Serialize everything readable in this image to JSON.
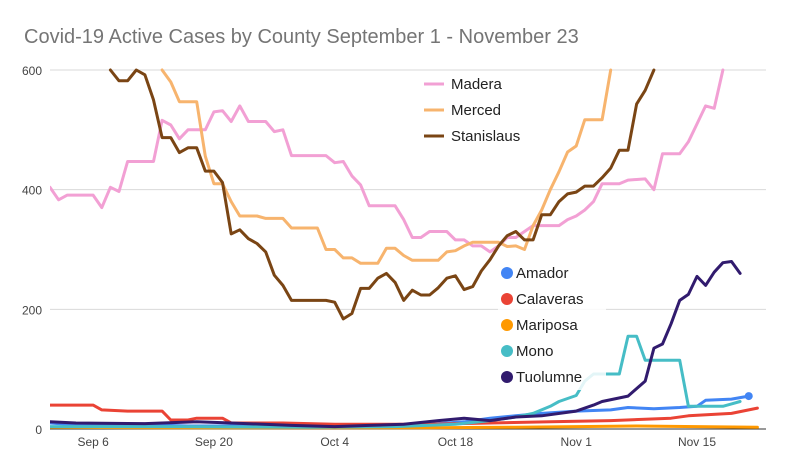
{
  "chart_data": {
    "type": "line",
    "title": "Covid-19 Active Cases by County September 1 - November 23",
    "xlabel": "",
    "ylabel": "",
    "ylim": [
      0,
      600
    ],
    "xlim": [
      "2020-09-01",
      "2020-11-23"
    ],
    "grid": true,
    "y_ticks": [
      0,
      200,
      400,
      600
    ],
    "x_ticks": [
      {
        "date": "2020-09-06",
        "label": "Sep 6"
      },
      {
        "date": "2020-09-20",
        "label": "Sep 20"
      },
      {
        "date": "2020-10-04",
        "label": "Oct 4"
      },
      {
        "date": "2020-10-18",
        "label": "Oct 18"
      },
      {
        "date": "2020-11-01",
        "label": "Nov 1"
      },
      {
        "date": "2020-11-15",
        "label": "Nov 15"
      }
    ],
    "legend_groups": [
      {
        "placement": "top-center",
        "style": "line",
        "series": [
          "Madera",
          "Merced",
          "Stanislaus"
        ]
      },
      {
        "placement": "center-right",
        "style": "dot",
        "series": [
          "Amador",
          "Calaveras",
          "Mariposa",
          "Mono",
          "Tuolumne"
        ]
      }
    ],
    "series": [
      {
        "name": "Madera",
        "color": "#f2a0d4",
        "points": [
          [
            "2020-09-01",
            404
          ],
          [
            "2020-09-02",
            383
          ],
          [
            "2020-09-03",
            391
          ],
          [
            "2020-09-05",
            391
          ],
          [
            "2020-09-06",
            391
          ],
          [
            "2020-09-07",
            370
          ],
          [
            "2020-09-08",
            404
          ],
          [
            "2020-09-09",
            397
          ],
          [
            "2020-09-10",
            447
          ],
          [
            "2020-09-13",
            447
          ],
          [
            "2020-09-14",
            516
          ],
          [
            "2020-09-15",
            508
          ],
          [
            "2020-09-16",
            485
          ],
          [
            "2020-09-17",
            500
          ],
          [
            "2020-09-19",
            500
          ],
          [
            "2020-09-20",
            530
          ],
          [
            "2020-09-21",
            532
          ],
          [
            "2020-09-22",
            514
          ],
          [
            "2020-09-23",
            540
          ],
          [
            "2020-09-24",
            514
          ],
          [
            "2020-09-26",
            514
          ],
          [
            "2020-09-27",
            497
          ],
          [
            "2020-09-28",
            500
          ],
          [
            "2020-09-29",
            457
          ],
          [
            "2020-10-03",
            457
          ],
          [
            "2020-10-04",
            445
          ],
          [
            "2020-10-05",
            447
          ],
          [
            "2020-10-06",
            423
          ],
          [
            "2020-10-07",
            408
          ],
          [
            "2020-10-08",
            373
          ],
          [
            "2020-10-11",
            373
          ],
          [
            "2020-10-12",
            350
          ],
          [
            "2020-10-13",
            320
          ],
          [
            "2020-10-14",
            320
          ],
          [
            "2020-10-15",
            330
          ],
          [
            "2020-10-17",
            330
          ],
          [
            "2020-10-18",
            316
          ],
          [
            "2020-10-19",
            316
          ],
          [
            "2020-10-20",
            306
          ],
          [
            "2020-10-21",
            306
          ],
          [
            "2020-10-22",
            296
          ],
          [
            "2020-10-23",
            306
          ],
          [
            "2020-10-24",
            320
          ],
          [
            "2020-10-25",
            320
          ],
          [
            "2020-10-26",
            330
          ],
          [
            "2020-10-27",
            340
          ],
          [
            "2020-10-30",
            340
          ],
          [
            "2020-10-31",
            350
          ],
          [
            "2020-11-01",
            356
          ],
          [
            "2020-11-02",
            366
          ],
          [
            "2020-11-03",
            380
          ],
          [
            "2020-11-04",
            410
          ],
          [
            "2020-11-06",
            410
          ],
          [
            "2020-11-07",
            416
          ],
          [
            "2020-11-09",
            418
          ],
          [
            "2020-11-10",
            400
          ],
          [
            "2020-11-11",
            460
          ],
          [
            "2020-11-13",
            460
          ],
          [
            "2020-11-14",
            480
          ],
          [
            "2020-11-15",
            510
          ],
          [
            "2020-11-16",
            540
          ],
          [
            "2020-11-17",
            536
          ],
          [
            "2020-11-18",
            600
          ]
        ]
      },
      {
        "name": "Merced",
        "color": "#f7b46e",
        "points": [
          [
            "2020-09-14",
            600
          ],
          [
            "2020-09-15",
            580
          ],
          [
            "2020-09-16",
            547
          ],
          [
            "2020-09-17",
            547
          ],
          [
            "2020-09-18",
            547
          ],
          [
            "2020-09-19",
            456
          ],
          [
            "2020-09-20",
            410
          ],
          [
            "2020-09-21",
            410
          ],
          [
            "2020-09-22",
            380
          ],
          [
            "2020-09-23",
            356
          ],
          [
            "2020-09-25",
            356
          ],
          [
            "2020-09-26",
            352
          ],
          [
            "2020-09-28",
            352
          ],
          [
            "2020-09-29",
            336
          ],
          [
            "2020-10-02",
            336
          ],
          [
            "2020-10-03",
            300
          ],
          [
            "2020-10-04",
            300
          ],
          [
            "2020-10-05",
            286
          ],
          [
            "2020-10-06",
            286
          ],
          [
            "2020-10-07",
            277
          ],
          [
            "2020-10-09",
            277
          ],
          [
            "2020-10-10",
            302
          ],
          [
            "2020-10-11",
            302
          ],
          [
            "2020-10-12",
            290
          ],
          [
            "2020-10-13",
            282
          ],
          [
            "2020-10-16",
            282
          ],
          [
            "2020-10-17",
            296
          ],
          [
            "2020-10-18",
            298
          ],
          [
            "2020-10-19",
            306
          ],
          [
            "2020-10-20",
            312
          ],
          [
            "2020-10-23",
            312
          ],
          [
            "2020-10-24",
            305
          ],
          [
            "2020-10-25",
            306
          ],
          [
            "2020-10-26",
            300
          ],
          [
            "2020-10-27",
            340
          ],
          [
            "2020-10-28",
            366
          ],
          [
            "2020-10-29",
            400
          ],
          [
            "2020-10-30",
            430
          ],
          [
            "2020-10-31",
            463
          ],
          [
            "2020-11-01",
            473
          ],
          [
            "2020-11-02",
            517
          ],
          [
            "2020-11-04",
            517
          ],
          [
            "2020-11-05",
            600
          ]
        ]
      },
      {
        "name": "Stanislaus",
        "color": "#7a4514",
        "points": [
          [
            "2020-09-08",
            600
          ],
          [
            "2020-09-09",
            582
          ],
          [
            "2020-09-10",
            582
          ],
          [
            "2020-09-11",
            600
          ],
          [
            "2020-09-12",
            592
          ],
          [
            "2020-09-13",
            550
          ],
          [
            "2020-09-14",
            487
          ],
          [
            "2020-09-15",
            487
          ],
          [
            "2020-09-16",
            462
          ],
          [
            "2020-09-17",
            470
          ],
          [
            "2020-09-18",
            470
          ],
          [
            "2020-09-19",
            431
          ],
          [
            "2020-09-20",
            431
          ],
          [
            "2020-09-21",
            412
          ],
          [
            "2020-09-22",
            326
          ],
          [
            "2020-09-23",
            333
          ],
          [
            "2020-09-24",
            318
          ],
          [
            "2020-09-25",
            310
          ],
          [
            "2020-09-26",
            296
          ],
          [
            "2020-09-27",
            257
          ],
          [
            "2020-09-28",
            240
          ],
          [
            "2020-09-29",
            215
          ],
          [
            "2020-10-03",
            215
          ],
          [
            "2020-10-04",
            212
          ],
          [
            "2020-10-05",
            184
          ],
          [
            "2020-10-06",
            193
          ],
          [
            "2020-10-07",
            235
          ],
          [
            "2020-10-08",
            235
          ],
          [
            "2020-10-09",
            252
          ],
          [
            "2020-10-10",
            260
          ],
          [
            "2020-10-11",
            245
          ],
          [
            "2020-10-12",
            215
          ],
          [
            "2020-10-13",
            232
          ],
          [
            "2020-10-14",
            224
          ],
          [
            "2020-10-15",
            224
          ],
          [
            "2020-10-16",
            236
          ],
          [
            "2020-10-17",
            252
          ],
          [
            "2020-10-18",
            256
          ],
          [
            "2020-10-19",
            233
          ],
          [
            "2020-10-20",
            238
          ],
          [
            "2020-10-21",
            264
          ],
          [
            "2020-10-22",
            283
          ],
          [
            "2020-10-23",
            306
          ],
          [
            "2020-10-24",
            323
          ],
          [
            "2020-10-25",
            330
          ],
          [
            "2020-10-26",
            316
          ],
          [
            "2020-10-27",
            316
          ],
          [
            "2020-10-28",
            358
          ],
          [
            "2020-10-29",
            358
          ],
          [
            "2020-10-30",
            380
          ],
          [
            "2020-10-31",
            393
          ],
          [
            "2020-11-01",
            396
          ],
          [
            "2020-11-02",
            406
          ],
          [
            "2020-11-03",
            406
          ],
          [
            "2020-11-04",
            420
          ],
          [
            "2020-11-05",
            436
          ],
          [
            "2020-11-06",
            466
          ],
          [
            "2020-11-07",
            466
          ],
          [
            "2020-11-08",
            543
          ],
          [
            "2020-11-09",
            566
          ],
          [
            "2020-11-10",
            600
          ]
        ]
      },
      {
        "name": "Amador",
        "color": "#4285f4",
        "points": [
          [
            "2020-09-01",
            10
          ],
          [
            "2020-09-03",
            8
          ],
          [
            "2020-09-10",
            8
          ],
          [
            "2020-09-17",
            5
          ],
          [
            "2020-10-01",
            5
          ],
          [
            "2020-10-15",
            8
          ],
          [
            "2020-10-19",
            12
          ],
          [
            "2020-10-22",
            18
          ],
          [
            "2020-10-25",
            22
          ],
          [
            "2020-10-28",
            26
          ],
          [
            "2020-11-01",
            30
          ],
          [
            "2020-11-05",
            32
          ],
          [
            "2020-11-07",
            36
          ],
          [
            "2020-11-10",
            34
          ],
          [
            "2020-11-13",
            36
          ],
          [
            "2020-11-15",
            38
          ],
          [
            "2020-11-16",
            48
          ],
          [
            "2020-11-19",
            50
          ],
          [
            "2020-11-21",
            55
          ]
        ]
      },
      {
        "name": "Calaveras",
        "color": "#ea4335",
        "points": [
          [
            "2020-09-01",
            40
          ],
          [
            "2020-09-06",
            40
          ],
          [
            "2020-09-07",
            32
          ],
          [
            "2020-09-10",
            30
          ],
          [
            "2020-09-14",
            30
          ],
          [
            "2020-09-15",
            15
          ],
          [
            "2020-09-17",
            15
          ],
          [
            "2020-09-18",
            18
          ],
          [
            "2020-09-21",
            18
          ],
          [
            "2020-09-22",
            10
          ],
          [
            "2020-09-28",
            10
          ],
          [
            "2020-10-04",
            8
          ],
          [
            "2020-10-15",
            8
          ],
          [
            "2020-10-22",
            10
          ],
          [
            "2020-10-29",
            12
          ],
          [
            "2020-11-05",
            14
          ],
          [
            "2020-11-12",
            18
          ],
          [
            "2020-11-14",
            22
          ],
          [
            "2020-11-19",
            26
          ],
          [
            "2020-11-22",
            35
          ]
        ]
      },
      {
        "name": "Mariposa",
        "color": "#ff9900",
        "points": [
          [
            "2020-09-01",
            3
          ],
          [
            "2020-09-15",
            2
          ],
          [
            "2020-10-01",
            2
          ],
          [
            "2020-10-15",
            2
          ],
          [
            "2020-10-25",
            3
          ],
          [
            "2020-11-01",
            4
          ],
          [
            "2020-11-08",
            5
          ],
          [
            "2020-11-15",
            4
          ],
          [
            "2020-11-22",
            3
          ]
        ]
      },
      {
        "name": "Mono",
        "color": "#46bdc6",
        "points": [
          [
            "2020-09-01",
            4
          ],
          [
            "2020-09-15",
            4
          ],
          [
            "2020-10-01",
            3
          ],
          [
            "2020-10-11",
            4
          ],
          [
            "2020-10-18",
            8
          ],
          [
            "2020-10-22",
            14
          ],
          [
            "2020-10-25",
            20
          ],
          [
            "2020-10-27",
            26
          ],
          [
            "2020-10-29",
            38
          ],
          [
            "2020-10-30",
            46
          ],
          [
            "2020-11-01",
            56
          ],
          [
            "2020-11-02",
            80
          ],
          [
            "2020-11-03",
            92
          ],
          [
            "2020-11-06",
            92
          ],
          [
            "2020-11-07",
            155
          ],
          [
            "2020-11-08",
            155
          ],
          [
            "2020-11-09",
            115
          ],
          [
            "2020-11-13",
            115
          ],
          [
            "2020-11-14",
            38
          ],
          [
            "2020-11-18",
            38
          ],
          [
            "2020-11-19",
            42
          ],
          [
            "2020-11-20",
            46
          ]
        ]
      },
      {
        "name": "Tuolumne",
        "color": "#311b6e",
        "points": [
          [
            "2020-09-01",
            12
          ],
          [
            "2020-09-04",
            10
          ],
          [
            "2020-09-12",
            9
          ],
          [
            "2020-09-18",
            12
          ],
          [
            "2020-09-22",
            10
          ],
          [
            "2020-09-29",
            6
          ],
          [
            "2020-10-04",
            4
          ],
          [
            "2020-10-08",
            6
          ],
          [
            "2020-10-12",
            8
          ],
          [
            "2020-10-16",
            14
          ],
          [
            "2020-10-19",
            18
          ],
          [
            "2020-10-22",
            14
          ],
          [
            "2020-10-25",
            20
          ],
          [
            "2020-10-28",
            22
          ],
          [
            "2020-11-01",
            30
          ],
          [
            "2020-11-03",
            40
          ],
          [
            "2020-11-04",
            46
          ],
          [
            "2020-11-07",
            55
          ],
          [
            "2020-11-09",
            80
          ],
          [
            "2020-11-10",
            135
          ],
          [
            "2020-11-11",
            142
          ],
          [
            "2020-11-12",
            176
          ],
          [
            "2020-11-13",
            215
          ],
          [
            "2020-11-14",
            225
          ],
          [
            "2020-11-15",
            255
          ],
          [
            "2020-11-16",
            240
          ],
          [
            "2020-11-17",
            262
          ],
          [
            "2020-11-18",
            278
          ],
          [
            "2020-11-19",
            280
          ],
          [
            "2020-11-20",
            260
          ]
        ]
      }
    ]
  }
}
